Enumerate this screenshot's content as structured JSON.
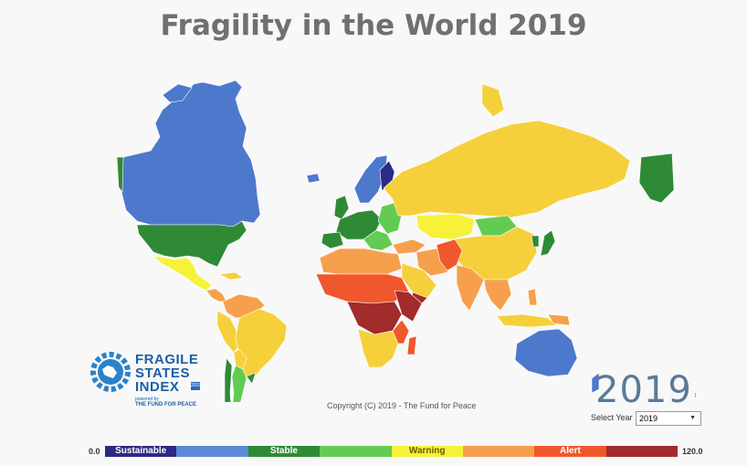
{
  "title": "Fragility in the World 2019",
  "logo": {
    "line1": "FRAGILE",
    "line2": "STATES",
    "line3": "INDEX",
    "badge": "2019",
    "powered": "powered by",
    "org": "THE FUND FOR PEACE"
  },
  "copyright": "Copyright (C) 2019 - The Fund for Peace",
  "year_display": "2019",
  "year_selector": {
    "label": "Select Year",
    "value": "2019"
  },
  "legend": {
    "min": "0.0",
    "max": "120.0",
    "segments": [
      {
        "color": "#2d2a83",
        "label": "Sustainable",
        "text_color": "#ffffff"
      },
      {
        "color": "#5b89d6",
        "label": "",
        "text_color": "#ffffff"
      },
      {
        "color": "#2f8a35",
        "label": "Stable",
        "text_color": "#ffffff"
      },
      {
        "color": "#62cc52",
        "label": "",
        "text_color": "#ffffff"
      },
      {
        "color": "#f6f23a",
        "label": "Warning",
        "text_color": "#6b5a00"
      },
      {
        "color": "#f6a04d",
        "label": "",
        "text_color": "#ffffff"
      },
      {
        "color": "#f1572c",
        "label": "Alert",
        "text_color": "#ffffff"
      },
      {
        "color": "#a22b2b",
        "label": "",
        "text_color": "#ffffff"
      }
    ]
  },
  "map_colors": {
    "sustainable_dark": "#2d2a83",
    "sustainable": "#4d79cc",
    "stable": "#2f8a35",
    "stable_light": "#62cc52",
    "warning_light": "#f6f23a",
    "warning": "#f5d03b",
    "warning_high": "#f6a04d",
    "alert": "#f1572c",
    "alert_high": "#a22b2b"
  }
}
